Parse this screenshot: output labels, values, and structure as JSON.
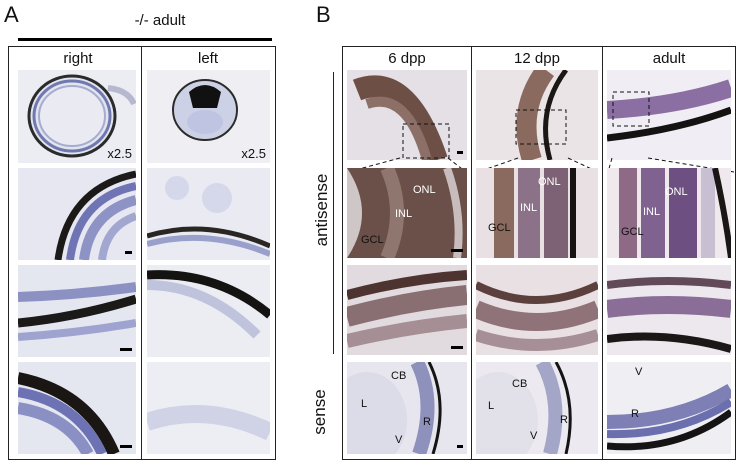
{
  "panel_a": {
    "letter": "A",
    "title": "-/- adult",
    "col_right": "right",
    "col_left": "left",
    "mag_right": "x2.5",
    "mag_left": "x2.5"
  },
  "panel_b": {
    "letter": "B",
    "col_6dpp": "6 dpp",
    "col_12dpp": "12 dpp",
    "col_adult": "adult",
    "row_antisense": "antisense",
    "row_sense": "sense",
    "labels": {
      "onl": "ONL",
      "inl": "INL",
      "gcl": "GCL",
      "cb": "CB",
      "l": "L",
      "v": "V",
      "r": "R"
    }
  }
}
